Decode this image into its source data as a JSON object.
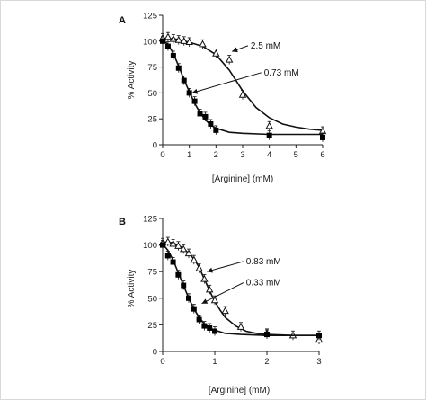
{
  "chart_data": [
    {
      "type": "scatter",
      "panel_label": "A",
      "xlabel": "[Arginine] (mM)",
      "ylabel": "% Activity",
      "xlim": [
        0,
        6
      ],
      "ylim": [
        0,
        125
      ],
      "x_ticks": [
        0,
        1,
        2,
        3,
        4,
        5,
        6
      ],
      "y_ticks": [
        0,
        25,
        50,
        75,
        100,
        125
      ],
      "grid": false,
      "series": [
        {
          "marker": "open-triangle",
          "points": [
            [
              0,
              103
            ],
            [
              0.2,
              104
            ],
            [
              0.4,
              102
            ],
            [
              0.6,
              101
            ],
            [
              0.8,
              100
            ],
            [
              1.0,
              99
            ],
            [
              1.5,
              97
            ],
            [
              2.0,
              88
            ],
            [
              2.5,
              82
            ],
            [
              3.0,
              48
            ],
            [
              4.0,
              18
            ],
            [
              6.0,
              13
            ]
          ],
          "fit": [
            [
              0,
              103
            ],
            [
              0.5,
              102
            ],
            [
              1.0,
              99
            ],
            [
              1.5,
              95
            ],
            [
              2.0,
              87
            ],
            [
              2.5,
              72
            ],
            [
              3.0,
              52
            ],
            [
              3.5,
              36
            ],
            [
              4.0,
              26
            ],
            [
              4.5,
              20
            ],
            [
              5.0,
              17
            ],
            [
              5.5,
              15
            ],
            [
              6.0,
              14
            ]
          ]
        },
        {
          "marker": "filled-square",
          "points": [
            [
              0,
              100
            ],
            [
              0.2,
              95
            ],
            [
              0.4,
              86
            ],
            [
              0.6,
              74
            ],
            [
              0.8,
              62
            ],
            [
              1.0,
              50
            ],
            [
              1.2,
              42
            ],
            [
              1.4,
              30
            ],
            [
              1.6,
              27
            ],
            [
              1.8,
              20
            ],
            [
              2.0,
              14
            ],
            [
              4.0,
              9
            ],
            [
              6.0,
              7
            ]
          ],
          "fit": [
            [
              0,
              101
            ],
            [
              0.2,
              97
            ],
            [
              0.4,
              88
            ],
            [
              0.6,
              76
            ],
            [
              0.8,
              63
            ],
            [
              1.0,
              51
            ],
            [
              1.2,
              40
            ],
            [
              1.4,
              31
            ],
            [
              1.6,
              24
            ],
            [
              1.8,
              19
            ],
            [
              2.0,
              16
            ],
            [
              2.5,
              12
            ],
            [
              3.0,
              11
            ],
            [
              4.0,
              10
            ],
            [
              5.0,
              10
            ],
            [
              6.0,
              10
            ]
          ]
        }
      ],
      "annotations": [
        {
          "text": "2.5 mM",
          "x": 3.3,
          "y": 93,
          "arrow_to": [
            2.6,
            90
          ]
        },
        {
          "text": "0.73 mM",
          "x": 3.8,
          "y": 67,
          "arrow_to": [
            1.1,
            50
          ]
        }
      ]
    },
    {
      "type": "scatter",
      "panel_label": "B",
      "xlabel": "[Arginine] (mM)",
      "ylabel": "% Activity",
      "xlim": [
        0,
        3
      ],
      "ylim": [
        0,
        125
      ],
      "x_ticks": [
        0,
        1,
        2,
        3
      ],
      "y_ticks": [
        0,
        25,
        50,
        75,
        100,
        125
      ],
      "grid": false,
      "series": [
        {
          "marker": "open-triangle",
          "points": [
            [
              0,
              102
            ],
            [
              0.1,
              103
            ],
            [
              0.2,
              101
            ],
            [
              0.3,
              99
            ],
            [
              0.4,
              96
            ],
            [
              0.5,
              92
            ],
            [
              0.6,
              86
            ],
            [
              0.7,
              78
            ],
            [
              0.8,
              68
            ],
            [
              0.9,
              58
            ],
            [
              1.0,
              48
            ],
            [
              1.2,
              38
            ],
            [
              1.5,
              23
            ],
            [
              2.0,
              17
            ],
            [
              2.5,
              15
            ],
            [
              3.0,
              11
            ]
          ],
          "fit": [
            [
              0,
              103
            ],
            [
              0.2,
              102
            ],
            [
              0.4,
              97
            ],
            [
              0.6,
              87
            ],
            [
              0.7,
              79
            ],
            [
              0.8,
              68
            ],
            [
              0.9,
              57
            ],
            [
              1.0,
              47
            ],
            [
              1.1,
              39
            ],
            [
              1.2,
              32
            ],
            [
              1.4,
              24
            ],
            [
              1.6,
              19
            ],
            [
              1.8,
              17
            ],
            [
              2.0,
              16
            ],
            [
              2.5,
              15
            ],
            [
              3.0,
              15
            ]
          ]
        },
        {
          "marker": "filled-square",
          "points": [
            [
              0,
              100
            ],
            [
              0.1,
              90
            ],
            [
              0.2,
              84
            ],
            [
              0.3,
              72
            ],
            [
              0.4,
              62
            ],
            [
              0.5,
              50
            ],
            [
              0.6,
              40
            ],
            [
              0.7,
              30
            ],
            [
              0.8,
              24
            ],
            [
              0.9,
              22
            ],
            [
              1.0,
              19
            ],
            [
              2.0,
              16
            ],
            [
              3.0,
              15
            ]
          ],
          "fit": [
            [
              0,
              101
            ],
            [
              0.1,
              95
            ],
            [
              0.2,
              86
            ],
            [
              0.3,
              74
            ],
            [
              0.4,
              62
            ],
            [
              0.5,
              50
            ],
            [
              0.6,
              40
            ],
            [
              0.7,
              32
            ],
            [
              0.8,
              26
            ],
            [
              0.9,
              22
            ],
            [
              1.0,
              20
            ],
            [
              1.2,
              17
            ],
            [
              1.5,
              16
            ],
            [
              2.0,
              15
            ],
            [
              3.0,
              15
            ]
          ]
        }
      ],
      "annotations": [
        {
          "text": "0.83 mM",
          "x": 1.6,
          "y": 82,
          "arrow_to": [
            0.85,
            75
          ]
        },
        {
          "text": "0.33 mM",
          "x": 1.6,
          "y": 62,
          "arrow_to": [
            0.75,
            45
          ]
        }
      ]
    }
  ]
}
